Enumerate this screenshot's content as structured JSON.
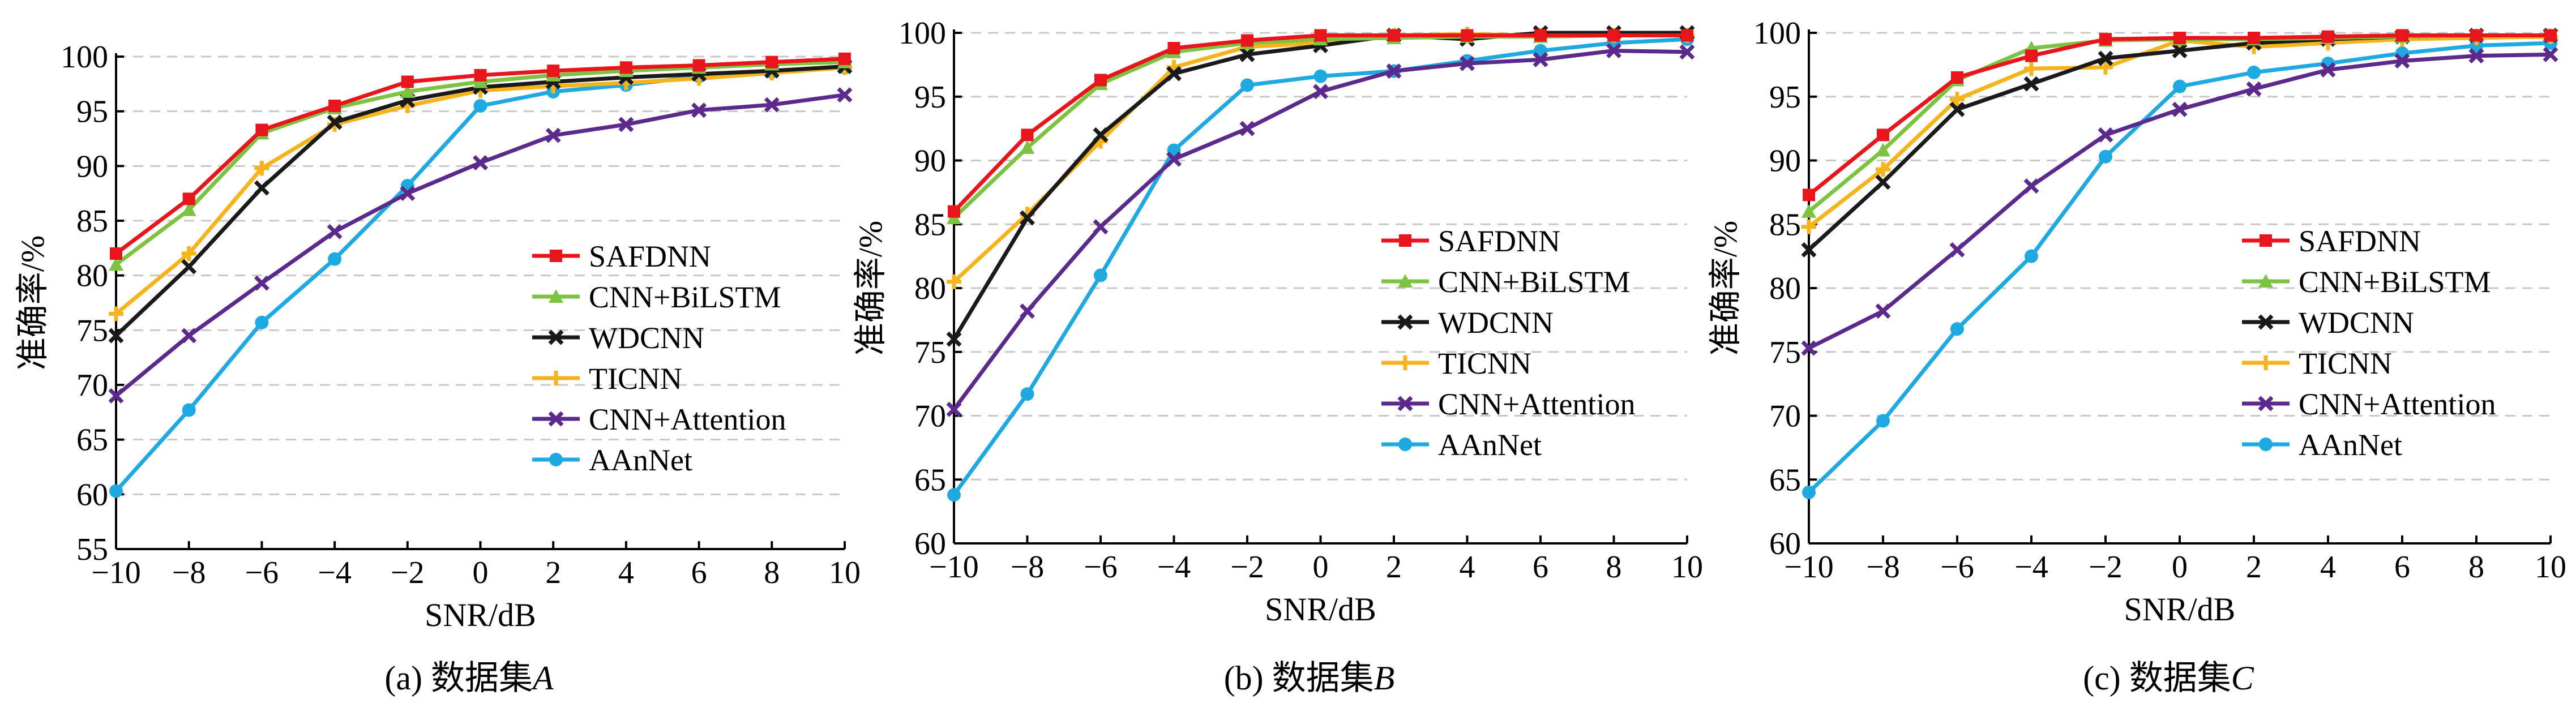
{
  "figure": {
    "panels": [
      {
        "caption": "(a) 数据集A",
        "caption_prefix": "(a) 数据集",
        "caption_var": "A",
        "xlabel": "SNR/dB",
        "ylabel": "准确率/%",
        "xticks": [
          "−10",
          "−8",
          "−6",
          "−4",
          "−2",
          "0",
          "2",
          "4",
          "6",
          "8",
          "10"
        ],
        "yticks": [
          "55",
          "60",
          "65",
          "70",
          "75",
          "80",
          "85",
          "90",
          "95",
          "100"
        ]
      },
      {
        "caption": "(b) 数据集B",
        "caption_prefix": "(b) 数据集",
        "caption_var": "B",
        "xlabel": "SNR/dB",
        "ylabel": "准确率/%",
        "xticks": [
          "−10",
          "−8",
          "−6",
          "−4",
          "−2",
          "0",
          "2",
          "4",
          "6",
          "8",
          "10"
        ],
        "yticks": [
          "60",
          "65",
          "70",
          "75",
          "80",
          "85",
          "90",
          "95",
          "100"
        ]
      },
      {
        "caption": "(c) 数据集C",
        "caption_prefix": "(c) 数据集",
        "caption_var": "C",
        "xlabel": "SNR/dB",
        "ylabel": "准确率/%",
        "xticks": [
          "−10",
          "−8",
          "−6",
          "−4",
          "−2",
          "0",
          "2",
          "4",
          "6",
          "8",
          "10"
        ],
        "yticks": [
          "60",
          "65",
          "70",
          "75",
          "80",
          "85",
          "90",
          "95",
          "100"
        ]
      }
    ]
  },
  "chart_data": [
    {
      "type": "line",
      "title": "(a) 数据集A",
      "xlabel": "SNR/dB",
      "ylabel": "准确率/%",
      "x": [
        -10,
        -8,
        -6,
        -4,
        -2,
        0,
        2,
        4,
        6,
        8,
        10
      ],
      "xlim": [
        -10,
        10
      ],
      "ylim": [
        55,
        100
      ],
      "grid": "horizontal dashed",
      "legend": "right",
      "series": [
        {
          "name": "SAFDNN",
          "color": "#e8161c",
          "marker": "square",
          "values": [
            82.0,
            87.0,
            93.3,
            95.5,
            97.7,
            98.3,
            98.7,
            99.0,
            99.2,
            99.5,
            99.8
          ]
        },
        {
          "name": "CNN+BiLSTM",
          "color": "#7ec241",
          "marker": "triangle",
          "values": [
            81.0,
            86.0,
            93.0,
            95.3,
            96.8,
            97.7,
            98.3,
            98.7,
            99.0,
            99.3,
            99.5
          ]
        },
        {
          "name": "WDCNN",
          "color": "#1a1a1a",
          "marker": "x",
          "values": [
            74.5,
            80.8,
            88.0,
            94.0,
            96.0,
            97.2,
            97.7,
            98.1,
            98.4,
            98.7,
            99.1
          ]
        },
        {
          "name": "TICNN",
          "color": "#f5b31c",
          "marker": "plus",
          "values": [
            76.5,
            82.0,
            89.8,
            93.8,
            95.5,
            96.9,
            97.3,
            97.6,
            98.0,
            98.5,
            99.0
          ]
        },
        {
          "name": "CNN+Attention",
          "color": "#5b2a8c",
          "marker": "x",
          "values": [
            69.0,
            74.5,
            79.3,
            84.0,
            87.5,
            90.3,
            92.8,
            93.8,
            95.1,
            95.6,
            96.5
          ]
        },
        {
          "name": "AAnNet",
          "color": "#1fa9e1",
          "marker": "circle",
          "values": [
            60.3,
            67.7,
            75.7,
            81.5,
            88.2,
            95.5,
            96.8,
            97.4,
            98.2,
            98.6,
            99.0
          ]
        }
      ]
    },
    {
      "type": "line",
      "title": "(b) 数据集B",
      "xlabel": "SNR/dB",
      "ylabel": "准确率/%",
      "x": [
        -10,
        -8,
        -6,
        -4,
        -2,
        0,
        2,
        4,
        6,
        8,
        10
      ],
      "xlim": [
        -10,
        10
      ],
      "ylim": [
        60,
        100
      ],
      "grid": "horizontal dashed",
      "legend": "right",
      "series": [
        {
          "name": "SAFDNN",
          "color": "#e8161c",
          "marker": "square",
          "values": [
            86.0,
            92.0,
            96.3,
            98.8,
            99.4,
            99.8,
            99.8,
            99.8,
            99.8,
            99.8,
            99.8
          ]
        },
        {
          "name": "CNN+BiLSTM",
          "color": "#7ec241",
          "marker": "triangle",
          "values": [
            85.5,
            91.0,
            96.0,
            98.5,
            99.2,
            99.5,
            99.6,
            99.7,
            99.7,
            99.8,
            99.8
          ]
        },
        {
          "name": "WDCNN",
          "color": "#1a1a1a",
          "marker": "x",
          "values": [
            76.0,
            85.5,
            92.0,
            96.8,
            98.3,
            99.0,
            99.8,
            99.5,
            100.0,
            100.0,
            100.0
          ]
        },
        {
          "name": "TICNN",
          "color": "#f5b31c",
          "marker": "plus",
          "values": [
            80.5,
            85.8,
            91.5,
            97.3,
            98.9,
            99.2,
            99.8,
            99.9,
            99.8,
            99.8,
            99.8
          ]
        },
        {
          "name": "CNN+Attention",
          "color": "#5b2a8c",
          "marker": "x",
          "values": [
            70.5,
            78.2,
            84.8,
            90.1,
            92.5,
            95.4,
            97.0,
            97.6,
            97.9,
            98.6,
            98.5
          ]
        },
        {
          "name": "AAnNet",
          "color": "#1fa9e1",
          "marker": "circle",
          "values": [
            63.8,
            71.7,
            81.0,
            90.8,
            95.9,
            96.6,
            97.0,
            97.8,
            98.6,
            99.2,
            99.5
          ]
        }
      ]
    },
    {
      "type": "line",
      "title": "(c) 数据集C",
      "xlabel": "SNR/dB",
      "ylabel": "准确率/%",
      "x": [
        -10,
        -8,
        -6,
        -4,
        -2,
        0,
        2,
        4,
        6,
        8,
        10
      ],
      "xlim": [
        -10,
        10
      ],
      "ylim": [
        60,
        100
      ],
      "grid": "horizontal dashed",
      "legend": "right",
      "series": [
        {
          "name": "SAFDNN",
          "color": "#e8161c",
          "marker": "square",
          "values": [
            87.3,
            92.0,
            96.5,
            98.2,
            99.5,
            99.6,
            99.6,
            99.7,
            99.8,
            99.8,
            99.8
          ]
        },
        {
          "name": "CNN+BiLSTM",
          "color": "#7ec241",
          "marker": "triangle",
          "values": [
            86.0,
            90.8,
            96.3,
            98.8,
            99.4,
            99.5,
            99.5,
            99.6,
            99.7,
            99.8,
            99.8
          ]
        },
        {
          "name": "WDCNN",
          "color": "#1a1a1a",
          "marker": "x",
          "values": [
            83.0,
            88.3,
            94.0,
            96.0,
            98.0,
            98.6,
            99.2,
            99.5,
            99.7,
            99.8,
            99.8
          ]
        },
        {
          "name": "TICNN",
          "color": "#f5b31c",
          "marker": "plus",
          "values": [
            84.8,
            89.3,
            94.8,
            97.2,
            97.3,
            99.4,
            98.9,
            99.2,
            99.5,
            99.6,
            99.7
          ]
        },
        {
          "name": "CNN+Attention",
          "color": "#5b2a8c",
          "marker": "x",
          "values": [
            75.3,
            78.2,
            83.0,
            88.0,
            92.0,
            94.0,
            95.6,
            97.1,
            97.8,
            98.2,
            98.3
          ]
        },
        {
          "name": "AAnNet",
          "color": "#1fa9e1",
          "marker": "circle",
          "values": [
            64.0,
            69.6,
            76.8,
            82.5,
            90.3,
            95.8,
            96.9,
            97.6,
            98.4,
            99.0,
            99.2
          ]
        }
      ]
    }
  ]
}
